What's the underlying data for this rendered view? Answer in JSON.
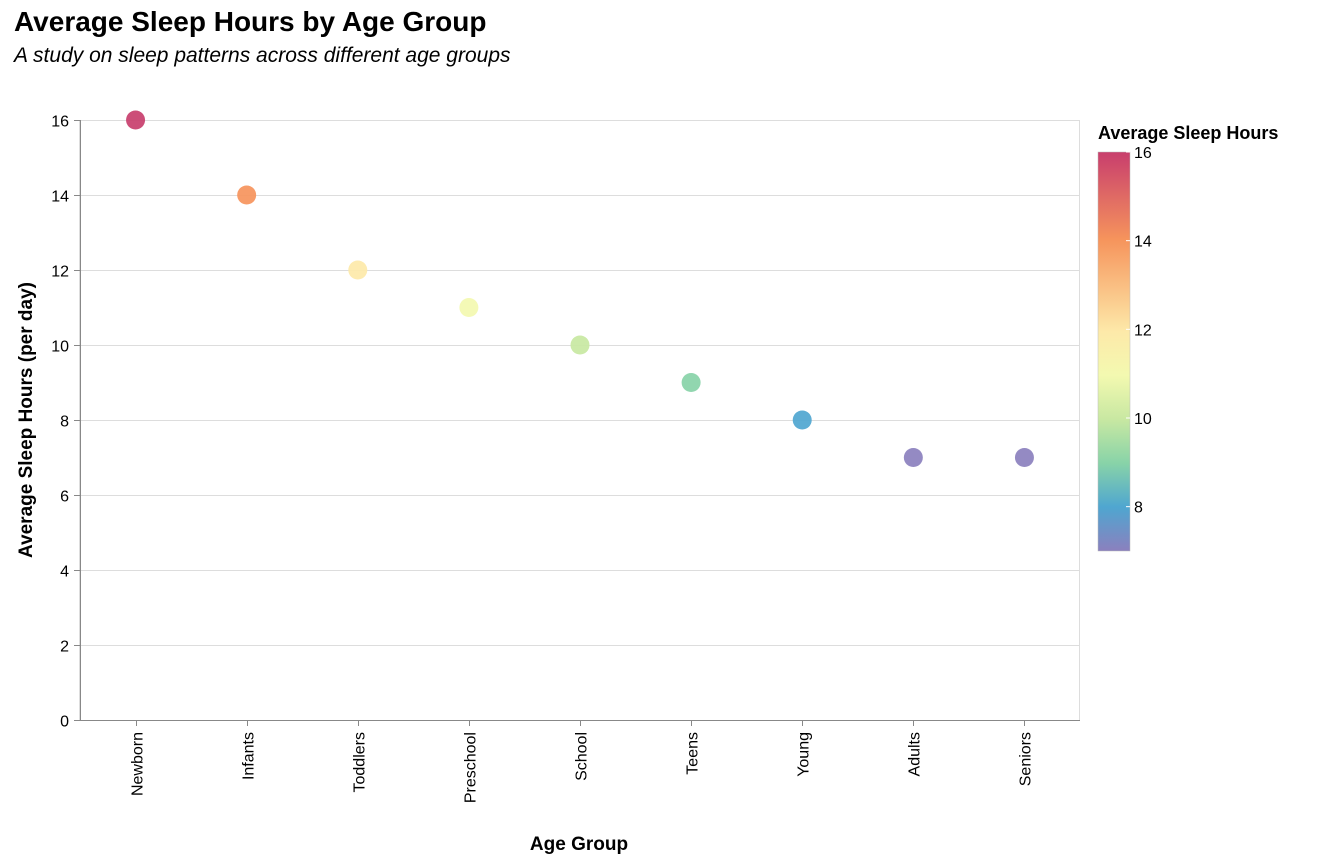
{
  "chart_data": {
    "type": "scatter",
    "title": "Average Sleep Hours by Age Group",
    "subtitle": "A study on sleep patterns across different age groups",
    "xlabel": "Age Group",
    "ylabel": "Average Sleep Hours (per day)",
    "categories": [
      "Newborn",
      "Infants",
      "Toddlers",
      "Preschool",
      "School",
      "Teens",
      "Young",
      "Adults",
      "Seniors"
    ],
    "values": [
      16,
      14,
      12,
      11,
      10,
      9,
      8,
      7,
      7
    ],
    "ylim": [
      0,
      16
    ],
    "yticks": [
      0,
      2,
      4,
      6,
      8,
      10,
      12,
      14,
      16
    ],
    "grid": true,
    "legend": {
      "title": "Average Sleep Hours",
      "position": "right",
      "type": "gradient",
      "domain": [
        7,
        16
      ],
      "ticks": [
        8,
        10,
        12,
        14,
        16
      ],
      "colors": {
        "7": "#8b80be",
        "8": "#4fa6d0",
        "9": "#88d3a8",
        "10": "#c8e8a2",
        "11": "#f3f9b0",
        "12": "#fde9a9",
        "14": "#f6945c",
        "16": "#c83e6d"
      }
    }
  }
}
